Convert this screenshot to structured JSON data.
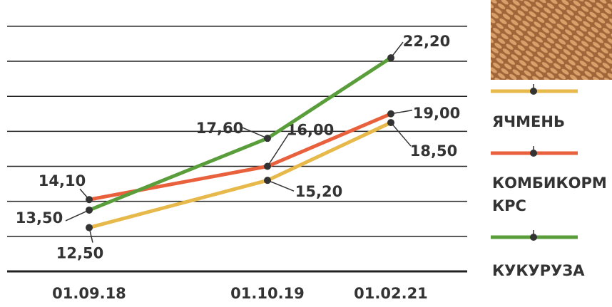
{
  "chart_data": {
    "type": "line",
    "categories": [
      "01.09.18",
      "01.10.19",
      "01.02.21"
    ],
    "series": [
      {
        "name": "ЯЧМЕНЬ",
        "color": "#e6b94a",
        "values": [
          12.5,
          15.2,
          18.5
        ],
        "value_labels": [
          "12,50",
          "15,20",
          "18,50"
        ]
      },
      {
        "name": "КОМБИКОРМ КРС",
        "color": "#e8603c",
        "values": [
          14.1,
          16.0,
          19.0
        ],
        "value_labels": [
          "14,10",
          "16,00",
          "19,00"
        ]
      },
      {
        "name": "КУКУРУЗА",
        "color": "#5a9e3c",
        "values": [
          13.5,
          17.6,
          22.2
        ],
        "value_labels": [
          "13,50",
          "17,60",
          "22,20"
        ]
      }
    ],
    "ylim": [
      10,
      25.5
    ],
    "yticks": [
      10,
      12,
      14,
      16,
      18,
      20,
      22,
      24
    ],
    "grid": true
  }
}
